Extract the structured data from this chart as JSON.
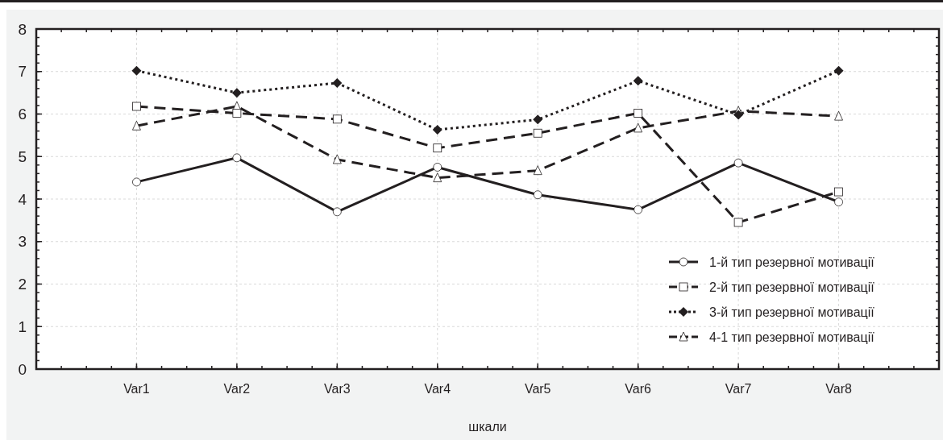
{
  "chart_data": {
    "type": "line",
    "xlabel": "шкали",
    "categories": [
      "Var1",
      "Var2",
      "Var3",
      "Var4",
      "Var5",
      "Var6",
      "Var7",
      "Var8"
    ],
    "series": [
      {
        "name": "1-й тип резервної мотивації",
        "color": "#231f20",
        "marker": "circle",
        "line_style": "solid",
        "values": [
          4.4,
          4.97,
          3.7,
          4.75,
          4.1,
          3.75,
          4.85,
          3.93
        ]
      },
      {
        "name": "2-й тип резервної мотивації",
        "color": "#231f20",
        "marker": "square",
        "line_style": "dashed",
        "values": [
          6.18,
          6.02,
          5.88,
          5.2,
          5.55,
          6.02,
          3.45,
          4.17
        ]
      },
      {
        "name": "3-й тип резервної мотивації",
        "color": "#231f20",
        "marker": "diamond",
        "line_style": "dotted",
        "values": [
          7.02,
          6.5,
          6.73,
          5.63,
          5.87,
          6.78,
          5.98,
          7.02
        ]
      },
      {
        "name": "4-1 тип резервної мотивації",
        "color": "#231f20",
        "marker": "triangle",
        "line_style": "dashed",
        "values": [
          5.72,
          6.18,
          4.93,
          4.5,
          4.67,
          5.67,
          6.07,
          5.95
        ]
      }
    ],
    "ylim": [
      0,
      8
    ],
    "yticks": [
      0,
      1,
      2,
      3,
      4,
      5,
      6,
      7,
      8
    ],
    "grid": true,
    "legend": "bottom right"
  }
}
